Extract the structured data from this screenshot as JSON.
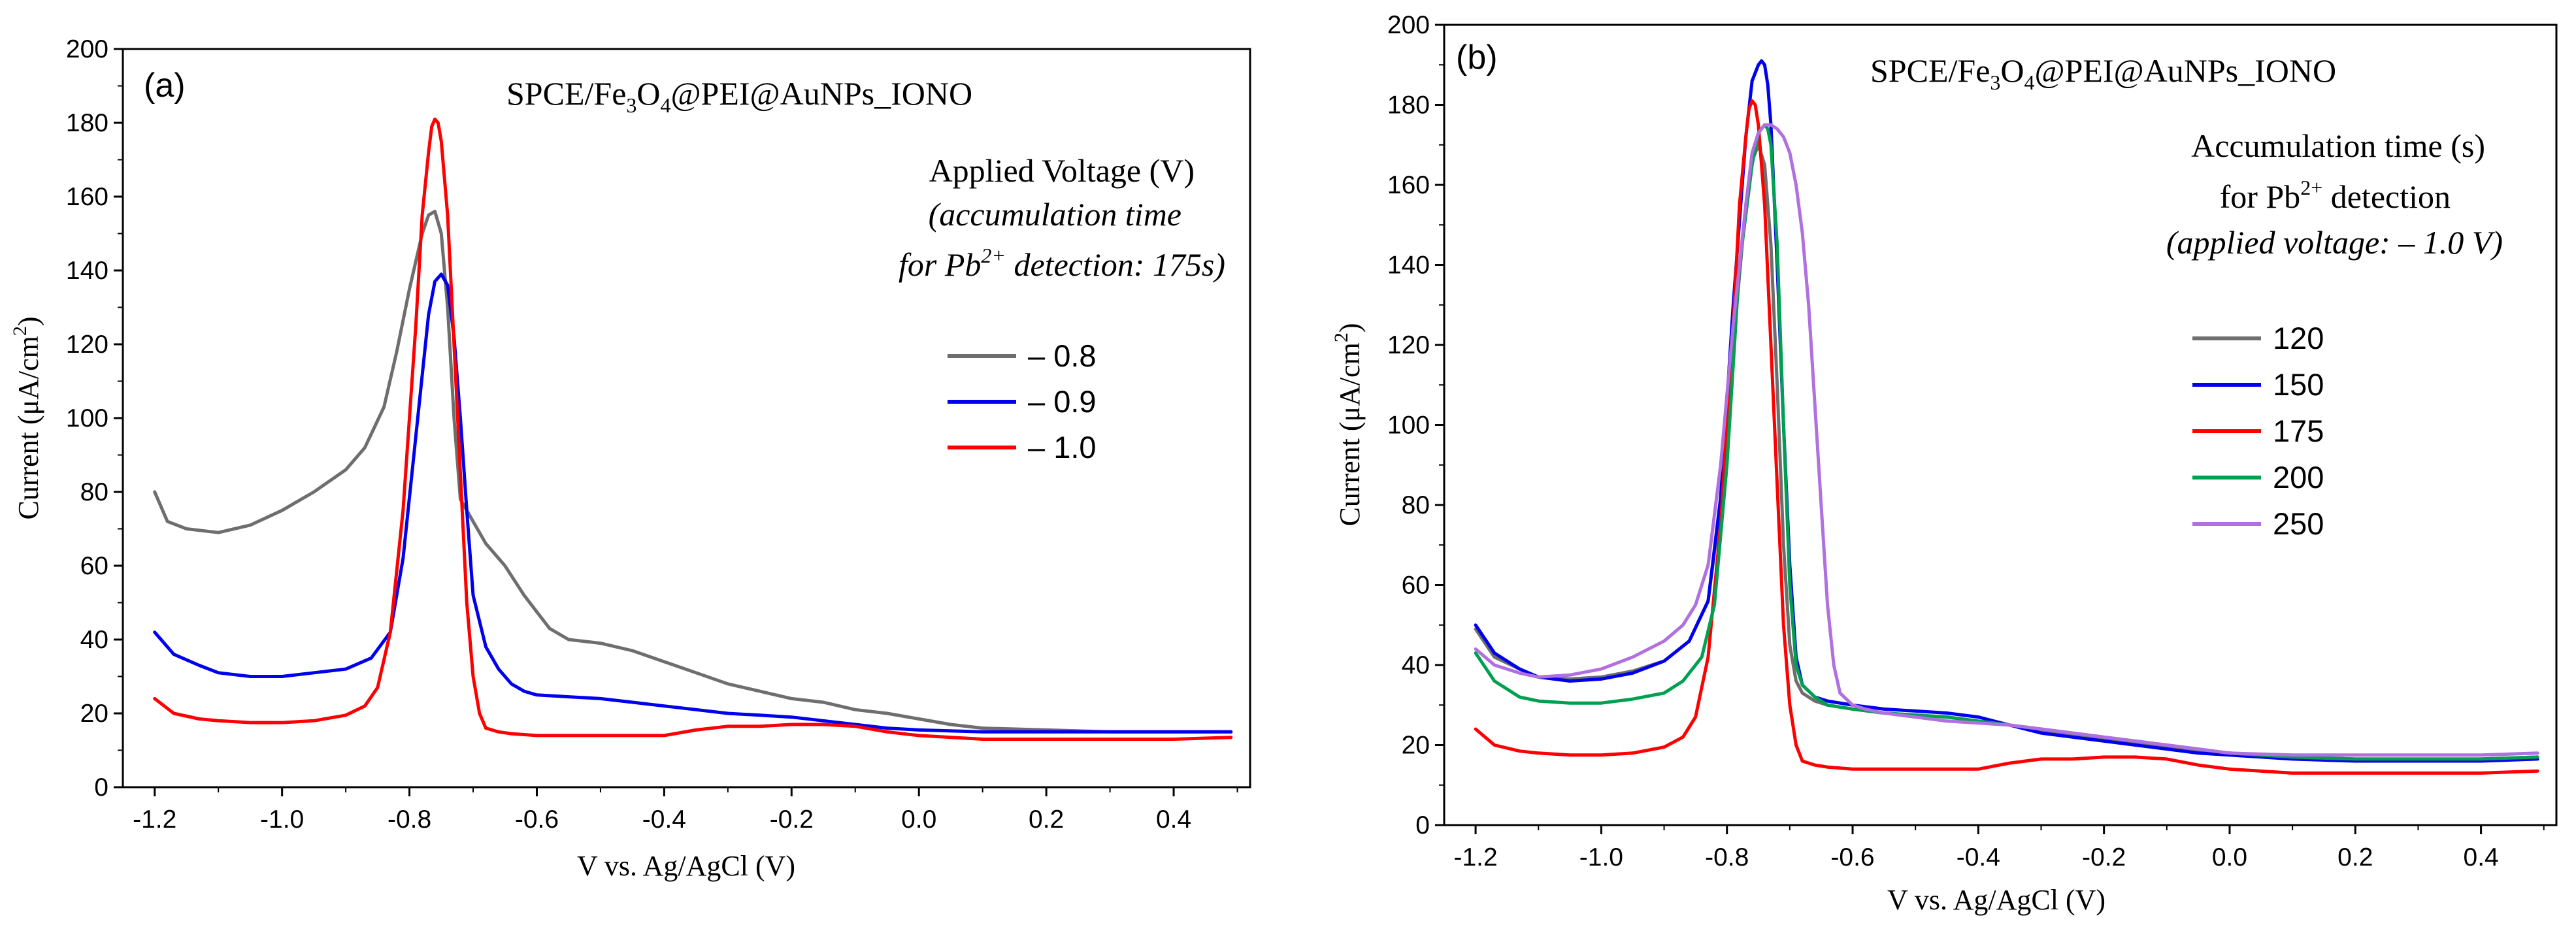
{
  "chart_data": [
    {
      "type": "line",
      "panel_label": "(a)",
      "title_prefix": "SPCE/Fe",
      "title_sub1": "3",
      "title_mid": "O",
      "title_sub2": "4",
      "title_suffix": "@PEI@AuNPs_IONO",
      "xlabel": "V vs. Ag/AgCl (V)",
      "ylabel_prefix": "Current (μA/cm",
      "ylabel_sup": "2",
      "ylabel_suffix": ")",
      "xlim": [
        -1.25,
        0.52
      ],
      "ylim": [
        0,
        200
      ],
      "xticks": [
        -1.2,
        -1.0,
        -0.8,
        -0.6,
        -0.4,
        -0.2,
        0.0,
        0.2,
        0.4
      ],
      "xtick_labels": [
        "-1.2",
        "-1.0",
        "-0.8",
        "-0.6",
        "-0.4",
        "-0.2",
        "0.0",
        "0.2",
        "0.4"
      ],
      "yticks": [
        0,
        20,
        40,
        60,
        80,
        100,
        120,
        140,
        160,
        180,
        200
      ],
      "ytick_labels": [
        "0",
        "20",
        "40",
        "60",
        "80",
        "100",
        "120",
        "140",
        "160",
        "180",
        "200"
      ],
      "annotation": {
        "line1": "Applied Voltage (V)",
        "line2": "(accumulation time",
        "line3_prefix": "for Pb",
        "line3_sup": "2+",
        "line3_suffix": " detection: 175s)"
      },
      "legend_position": "right-middle",
      "series": [
        {
          "name": "– 0.8",
          "color": "#6e6e6e",
          "x": [
            -1.2,
            -1.18,
            -1.15,
            -1.1,
            -1.05,
            -1.0,
            -0.95,
            -0.9,
            -0.87,
            -0.84,
            -0.82,
            -0.8,
            -0.78,
            -0.77,
            -0.76,
            -0.75,
            -0.74,
            -0.73,
            -0.72,
            -0.7,
            -0.68,
            -0.65,
            -0.62,
            -0.58,
            -0.55,
            -0.5,
            -0.45,
            -0.4,
            -0.35,
            -0.3,
            -0.25,
            -0.2,
            -0.15,
            -0.1,
            -0.05,
            0.0,
            0.05,
            0.1,
            0.2,
            0.3,
            0.4,
            0.49
          ],
          "y": [
            80,
            72,
            70,
            69,
            71,
            75,
            80,
            86,
            92,
            103,
            118,
            135,
            150,
            155,
            156,
            150,
            130,
            100,
            78,
            72,
            66,
            60,
            52,
            43,
            40,
            39,
            37,
            34,
            31,
            28,
            26,
            24,
            23,
            21,
            20,
            18.5,
            17,
            16,
            15.5,
            15,
            15,
            15
          ]
        },
        {
          "name": "– 0.9",
          "color": "#0000ee",
          "x": [
            -1.2,
            -1.17,
            -1.13,
            -1.1,
            -1.05,
            -1.0,
            -0.95,
            -0.9,
            -0.86,
            -0.83,
            -0.81,
            -0.79,
            -0.77,
            -0.76,
            -0.75,
            -0.74,
            -0.73,
            -0.72,
            -0.71,
            -0.7,
            -0.68,
            -0.66,
            -0.64,
            -0.62,
            -0.6,
            -0.55,
            -0.5,
            -0.45,
            -0.4,
            -0.35,
            -0.3,
            -0.25,
            -0.2,
            -0.15,
            -0.1,
            -0.05,
            0.0,
            0.1,
            0.2,
            0.3,
            0.4,
            0.49
          ],
          "y": [
            42,
            36,
            33,
            31,
            30,
            30,
            31,
            32,
            35,
            42,
            62,
            95,
            128,
            137,
            139,
            136,
            122,
            100,
            75,
            52,
            38,
            32,
            28,
            26,
            25,
            24.5,
            24,
            23,
            22,
            21,
            20,
            19.5,
            19,
            18,
            17,
            16,
            15.5,
            15,
            15,
            15,
            15,
            15
          ]
        },
        {
          "name": "– 1.0",
          "color": "#ff0000",
          "x": [
            -1.2,
            -1.17,
            -1.13,
            -1.1,
            -1.05,
            -1.0,
            -0.95,
            -0.9,
            -0.87,
            -0.85,
            -0.83,
            -0.81,
            -0.79,
            -0.78,
            -0.77,
            -0.765,
            -0.76,
            -0.755,
            -0.75,
            -0.74,
            -0.73,
            -0.72,
            -0.71,
            -0.7,
            -0.69,
            -0.68,
            -0.66,
            -0.64,
            -0.6,
            -0.55,
            -0.5,
            -0.45,
            -0.4,
            -0.35,
            -0.3,
            -0.25,
            -0.2,
            -0.15,
            -0.1,
            -0.05,
            0.0,
            0.1,
            0.2,
            0.3,
            0.4,
            0.49
          ],
          "y": [
            24,
            20,
            18.5,
            18,
            17.5,
            17.5,
            18,
            19.5,
            22,
            27,
            42,
            75,
            125,
            155,
            172,
            179,
            181,
            180,
            175,
            155,
            120,
            85,
            50,
            30,
            20,
            16,
            15,
            14.5,
            14,
            14,
            14,
            14,
            14,
            15.5,
            16.5,
            16.5,
            17,
            17,
            16.5,
            15,
            14,
            13,
            13,
            13,
            13,
            13.5
          ]
        }
      ]
    },
    {
      "type": "line",
      "panel_label": "(b)",
      "title_prefix": "SPCE/Fe",
      "title_sub1": "3",
      "title_mid": "O",
      "title_sub2": "4",
      "title_suffix": "@PEI@AuNPs_IONO",
      "xlabel": "V vs. Ag/AgCl (V)",
      "ylabel_prefix": "Current (μA/cm",
      "ylabel_sup": "2",
      "ylabel_suffix": ")",
      "xlim": [
        -1.25,
        0.52
      ],
      "ylim": [
        0,
        200
      ],
      "xticks": [
        -1.2,
        -1.0,
        -0.8,
        -0.6,
        -0.4,
        -0.2,
        0.0,
        0.2,
        0.4
      ],
      "xtick_labels": [
        "-1.2",
        "-1.0",
        "-0.8",
        "-0.6",
        "-0.4",
        "-0.2",
        "0.0",
        "0.2",
        "0.4"
      ],
      "yticks": [
        0,
        20,
        40,
        60,
        80,
        100,
        120,
        140,
        160,
        180,
        200
      ],
      "ytick_labels": [
        "0",
        "20",
        "40",
        "60",
        "80",
        "100",
        "120",
        "140",
        "160",
        "180",
        "200"
      ],
      "annotation": {
        "line1": "Accumulation time (s)",
        "line2_prefix": "for Pb",
        "line2_sup": "2+",
        "line2_suffix": " detection",
        "line3": "(applied voltage: – 1.0 V)"
      },
      "legend_position": "right-middle",
      "series": [
        {
          "name": "120",
          "color": "#6e6e6e",
          "x": [
            -1.2,
            -1.17,
            -1.13,
            -1.1,
            -1.05,
            -1.0,
            -0.95,
            -0.9,
            -0.86,
            -0.83,
            -0.81,
            -0.79,
            -0.77,
            -0.76,
            -0.75,
            -0.74,
            -0.73,
            -0.72,
            -0.71,
            -0.7,
            -0.69,
            -0.68,
            -0.66,
            -0.64,
            -0.6,
            -0.55,
            -0.5,
            -0.45,
            -0.4,
            -0.35,
            -0.3,
            -0.25,
            -0.2,
            -0.15,
            -0.1,
            -0.05,
            0.0,
            0.1,
            0.2,
            0.3,
            0.4,
            0.49
          ],
          "y": [
            49,
            42,
            39,
            37,
            36.5,
            37,
            38.5,
            41,
            46,
            56,
            80,
            120,
            155,
            166,
            170,
            165,
            145,
            110,
            70,
            45,
            36,
            33,
            31,
            30,
            29,
            28,
            27.5,
            27,
            26,
            25,
            23.5,
            22.5,
            21.5,
            20.5,
            19.5,
            18.5,
            18,
            17,
            16.5,
            16.5,
            16.5,
            17
          ]
        },
        {
          "name": "150",
          "color": "#0000ee",
          "x": [
            -1.2,
            -1.17,
            -1.13,
            -1.1,
            -1.05,
            -1.0,
            -0.95,
            -0.9,
            -0.86,
            -0.83,
            -0.81,
            -0.79,
            -0.77,
            -0.76,
            -0.75,
            -0.745,
            -0.74,
            -0.735,
            -0.73,
            -0.72,
            -0.71,
            -0.7,
            -0.69,
            -0.68,
            -0.66,
            -0.64,
            -0.6,
            -0.55,
            -0.5,
            -0.45,
            -0.4,
            -0.35,
            -0.3,
            -0.25,
            -0.2,
            -0.15,
            -0.1,
            -0.05,
            0.0,
            0.1,
            0.2,
            0.3,
            0.4,
            0.49
          ],
          "y": [
            50,
            43,
            39,
            37,
            36,
            36.5,
            38,
            41,
            46,
            56,
            82,
            130,
            172,
            186,
            190,
            191,
            190,
            185,
            175,
            140,
            100,
            65,
            42,
            35,
            32,
            31,
            30,
            29,
            28.5,
            28,
            27,
            25,
            23,
            22,
            21,
            20,
            19,
            18,
            17.5,
            16.5,
            16,
            16,
            16,
            16.5
          ]
        },
        {
          "name": "175",
          "color": "#ff0000",
          "x": [
            -1.2,
            -1.17,
            -1.13,
            -1.1,
            -1.05,
            -1.0,
            -0.95,
            -0.9,
            -0.87,
            -0.85,
            -0.83,
            -0.81,
            -0.79,
            -0.78,
            -0.77,
            -0.765,
            -0.76,
            -0.755,
            -0.75,
            -0.74,
            -0.73,
            -0.72,
            -0.71,
            -0.7,
            -0.69,
            -0.68,
            -0.66,
            -0.64,
            -0.6,
            -0.55,
            -0.5,
            -0.45,
            -0.4,
            -0.35,
            -0.3,
            -0.25,
            -0.2,
            -0.15,
            -0.1,
            -0.05,
            0.0,
            0.1,
            0.2,
            0.3,
            0.4,
            0.49
          ],
          "y": [
            24,
            20,
            18.5,
            18,
            17.5,
            17.5,
            18,
            19.5,
            22,
            27,
            42,
            75,
            125,
            155,
            172,
            179,
            181,
            180,
            175,
            155,
            120,
            85,
            50,
            30,
            20,
            16,
            15,
            14.5,
            14,
            14,
            14,
            14,
            14,
            15.5,
            16.5,
            16.5,
            17,
            17,
            16.5,
            15,
            14,
            13,
            13,
            13,
            13,
            13.5
          ]
        },
        {
          "name": "200",
          "color": "#00a050",
          "x": [
            -1.2,
            -1.17,
            -1.13,
            -1.1,
            -1.05,
            -1.0,
            -0.95,
            -0.9,
            -0.87,
            -0.84,
            -0.82,
            -0.8,
            -0.78,
            -0.76,
            -0.75,
            -0.74,
            -0.735,
            -0.73,
            -0.72,
            -0.71,
            -0.7,
            -0.69,
            -0.68,
            -0.66,
            -0.64,
            -0.6,
            -0.55,
            -0.5,
            -0.45,
            -0.4,
            -0.35,
            -0.3,
            -0.25,
            -0.2,
            -0.15,
            -0.1,
            -0.05,
            0.0,
            0.1,
            0.2,
            0.3,
            0.4,
            0.49
          ],
          "y": [
            43,
            36,
            32,
            31,
            30.5,
            30.5,
            31.5,
            33,
            36,
            42,
            55,
            90,
            140,
            165,
            173,
            175,
            174,
            170,
            145,
            100,
            60,
            40,
            35,
            32,
            30,
            29,
            28,
            27.5,
            27,
            26,
            25,
            24,
            23,
            22,
            21,
            20,
            19,
            18,
            17,
            16.5,
            16.5,
            16.5,
            17
          ]
        },
        {
          "name": "250",
          "color": "#b070e0",
          "x": [
            -1.2,
            -1.17,
            -1.13,
            -1.1,
            -1.05,
            -1.0,
            -0.95,
            -0.9,
            -0.87,
            -0.85,
            -0.83,
            -0.81,
            -0.79,
            -0.77,
            -0.76,
            -0.75,
            -0.74,
            -0.73,
            -0.72,
            -0.71,
            -0.7,
            -0.69,
            -0.68,
            -0.67,
            -0.66,
            -0.65,
            -0.64,
            -0.63,
            -0.62,
            -0.6,
            -0.58,
            -0.55,
            -0.5,
            -0.45,
            -0.4,
            -0.35,
            -0.3,
            -0.25,
            -0.2,
            -0.15,
            -0.1,
            -0.05,
            0.0,
            0.1,
            0.2,
            0.3,
            0.4,
            0.49
          ],
          "y": [
            44,
            40,
            38,
            37,
            37.5,
            39,
            42,
            46,
            50,
            55,
            65,
            90,
            125,
            155,
            168,
            173,
            175,
            175,
            174,
            172,
            168,
            160,
            148,
            130,
            105,
            80,
            55,
            40,
            33,
            30,
            29,
            28,
            27,
            26,
            25.5,
            25,
            24,
            23,
            22,
            21,
            20,
            19,
            18,
            17.5,
            17.5,
            17.5,
            17.5,
            18
          ]
        }
      ]
    }
  ]
}
